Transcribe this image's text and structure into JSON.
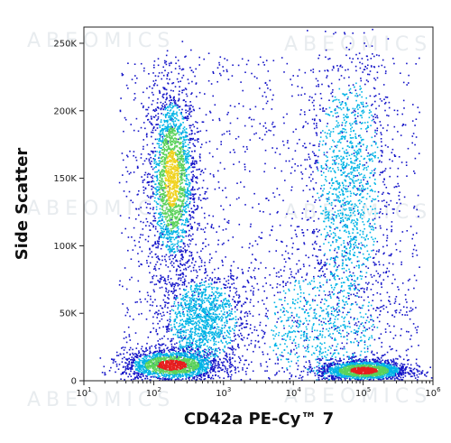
{
  "chart_data": {
    "type": "scatter",
    "title": "",
    "xlabel": "CD42a PE-Cy™ 7",
    "ylabel": "Side Scatter",
    "x_scale": "log",
    "xlim": [
      10,
      1000000
    ],
    "ylim": [
      0,
      262000
    ],
    "x_ticks": [
      {
        "value": 10,
        "base": "10",
        "exp": "1"
      },
      {
        "value": 100,
        "base": "10",
        "exp": "2"
      },
      {
        "value": 1000,
        "base": "10",
        "exp": "3"
      },
      {
        "value": 10000,
        "base": "10",
        "exp": "4"
      },
      {
        "value": 100000,
        "base": "10",
        "exp": "5"
      },
      {
        "value": 1000000,
        "base": "10",
        "exp": "6"
      }
    ],
    "y_ticks": [
      {
        "value": 0,
        "label": "0"
      },
      {
        "value": 50000,
        "label": "50K"
      },
      {
        "value": 100000,
        "label": "100K"
      },
      {
        "value": 150000,
        "label": "150K"
      },
      {
        "value": 200000,
        "label": "200K"
      },
      {
        "value": 250000,
        "label": "250K"
      }
    ],
    "clusters": [
      {
        "center_x": 180,
        "center_y": 150000,
        "spread_x_decades": 0.17,
        "spread_y": 35000,
        "density": "high"
      },
      {
        "center_x": 180,
        "center_y": 12000,
        "spread_x_decades": 0.35,
        "spread_y": 6000,
        "density": "very high"
      },
      {
        "center_x": 500,
        "center_y": 45000,
        "spread_x_decades": 0.3,
        "spread_y": 18000,
        "density": "medium"
      },
      {
        "center_x": 60000,
        "center_y": 145000,
        "spread_x_decades": 0.28,
        "spread_y": 50000,
        "density": "medium"
      },
      {
        "center_x": 100000,
        "center_y": 8000,
        "spread_x_decades": 0.32,
        "spread_y": 4000,
        "density": "very high"
      },
      {
        "center_x": 25000,
        "center_y": 40000,
        "spread_x_decades": 0.5,
        "spread_y": 25000,
        "density": "low"
      }
    ],
    "grid": false,
    "legend": "none",
    "colors": {
      "low": "#1414c8",
      "medium": "#00b4e6",
      "high": "#5ad25a",
      "very_high": "#e61e1e",
      "mid_high": "#f0d21e"
    }
  },
  "watermark": "ABEOMICS"
}
